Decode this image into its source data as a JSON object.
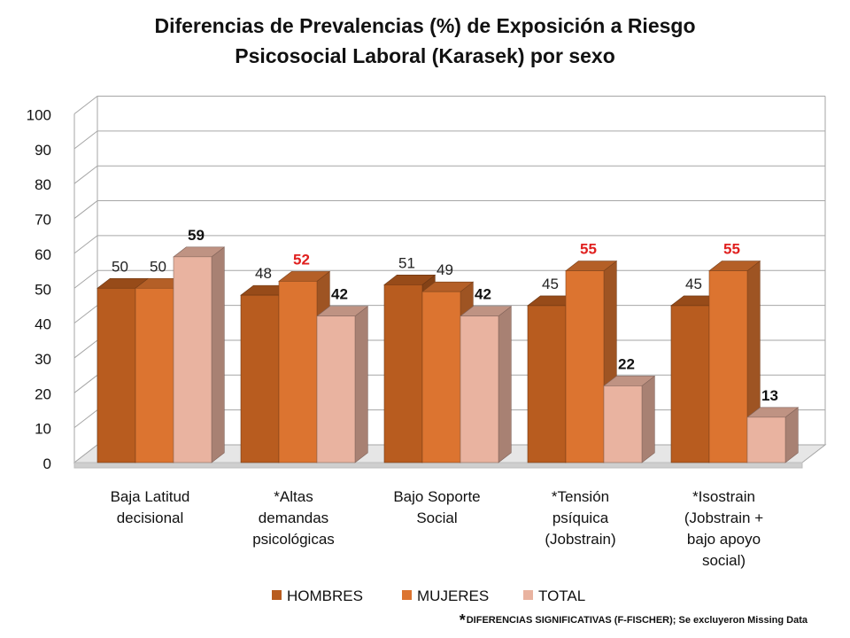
{
  "chart_data": {
    "type": "bar",
    "title_lines": [
      "Diferencias de Prevalencias (%) de Exposición a Riesgo",
      "Psicosocial Laboral (Karasek) por sexo"
    ],
    "categories": [
      [
        "Baja Latitud",
        "decisional"
      ],
      [
        "*Altas",
        "demandas",
        "psicológicas"
      ],
      [
        "Bajo Soporte",
        "Social"
      ],
      [
        "*Tensión",
        "psíquica",
        "(Jobstrain)"
      ],
      [
        "*Isostrain",
        "(Jobstrain +",
        "bajo apoyo",
        "social)"
      ]
    ],
    "series": [
      {
        "name": "HOMBRES",
        "values": [
          50,
          48,
          51,
          45,
          45
        ],
        "color": "#b85c1f",
        "label_color": [
          "#222222",
          "#222222",
          "#222222",
          "#222222",
          "#222222"
        ],
        "label_bold": false
      },
      {
        "name": "MUJERES",
        "values": [
          50,
          52,
          49,
          55,
          55
        ],
        "color": "#dc7430",
        "label_color": [
          "#222222",
          "#e0201f",
          "#222222",
          "#e0201f",
          "#e0201f"
        ],
        "label_bold": [
          false,
          true,
          false,
          true,
          true
        ]
      },
      {
        "name": "TOTAL",
        "values": [
          59,
          42,
          42,
          22,
          13
        ],
        "color": "#e9b3a0",
        "label_color": [
          "#111111",
          "#111111",
          "#111111",
          "#111111",
          "#111111"
        ],
        "label_bold": true
      }
    ],
    "ylim": [
      0,
      100
    ],
    "yticks": [
      "0",
      "10",
      "20",
      "30",
      "40",
      "50",
      "60",
      "70",
      "80",
      "90",
      "100"
    ],
    "grid": true,
    "style": "3d-clustered-column",
    "legend_position": "bottom"
  },
  "footnote": {
    "star": "*",
    "text": "DIFERENCIAS SIGNIFICATIVAS (F-FISCHER); Se excluyeron Missing Data"
  }
}
